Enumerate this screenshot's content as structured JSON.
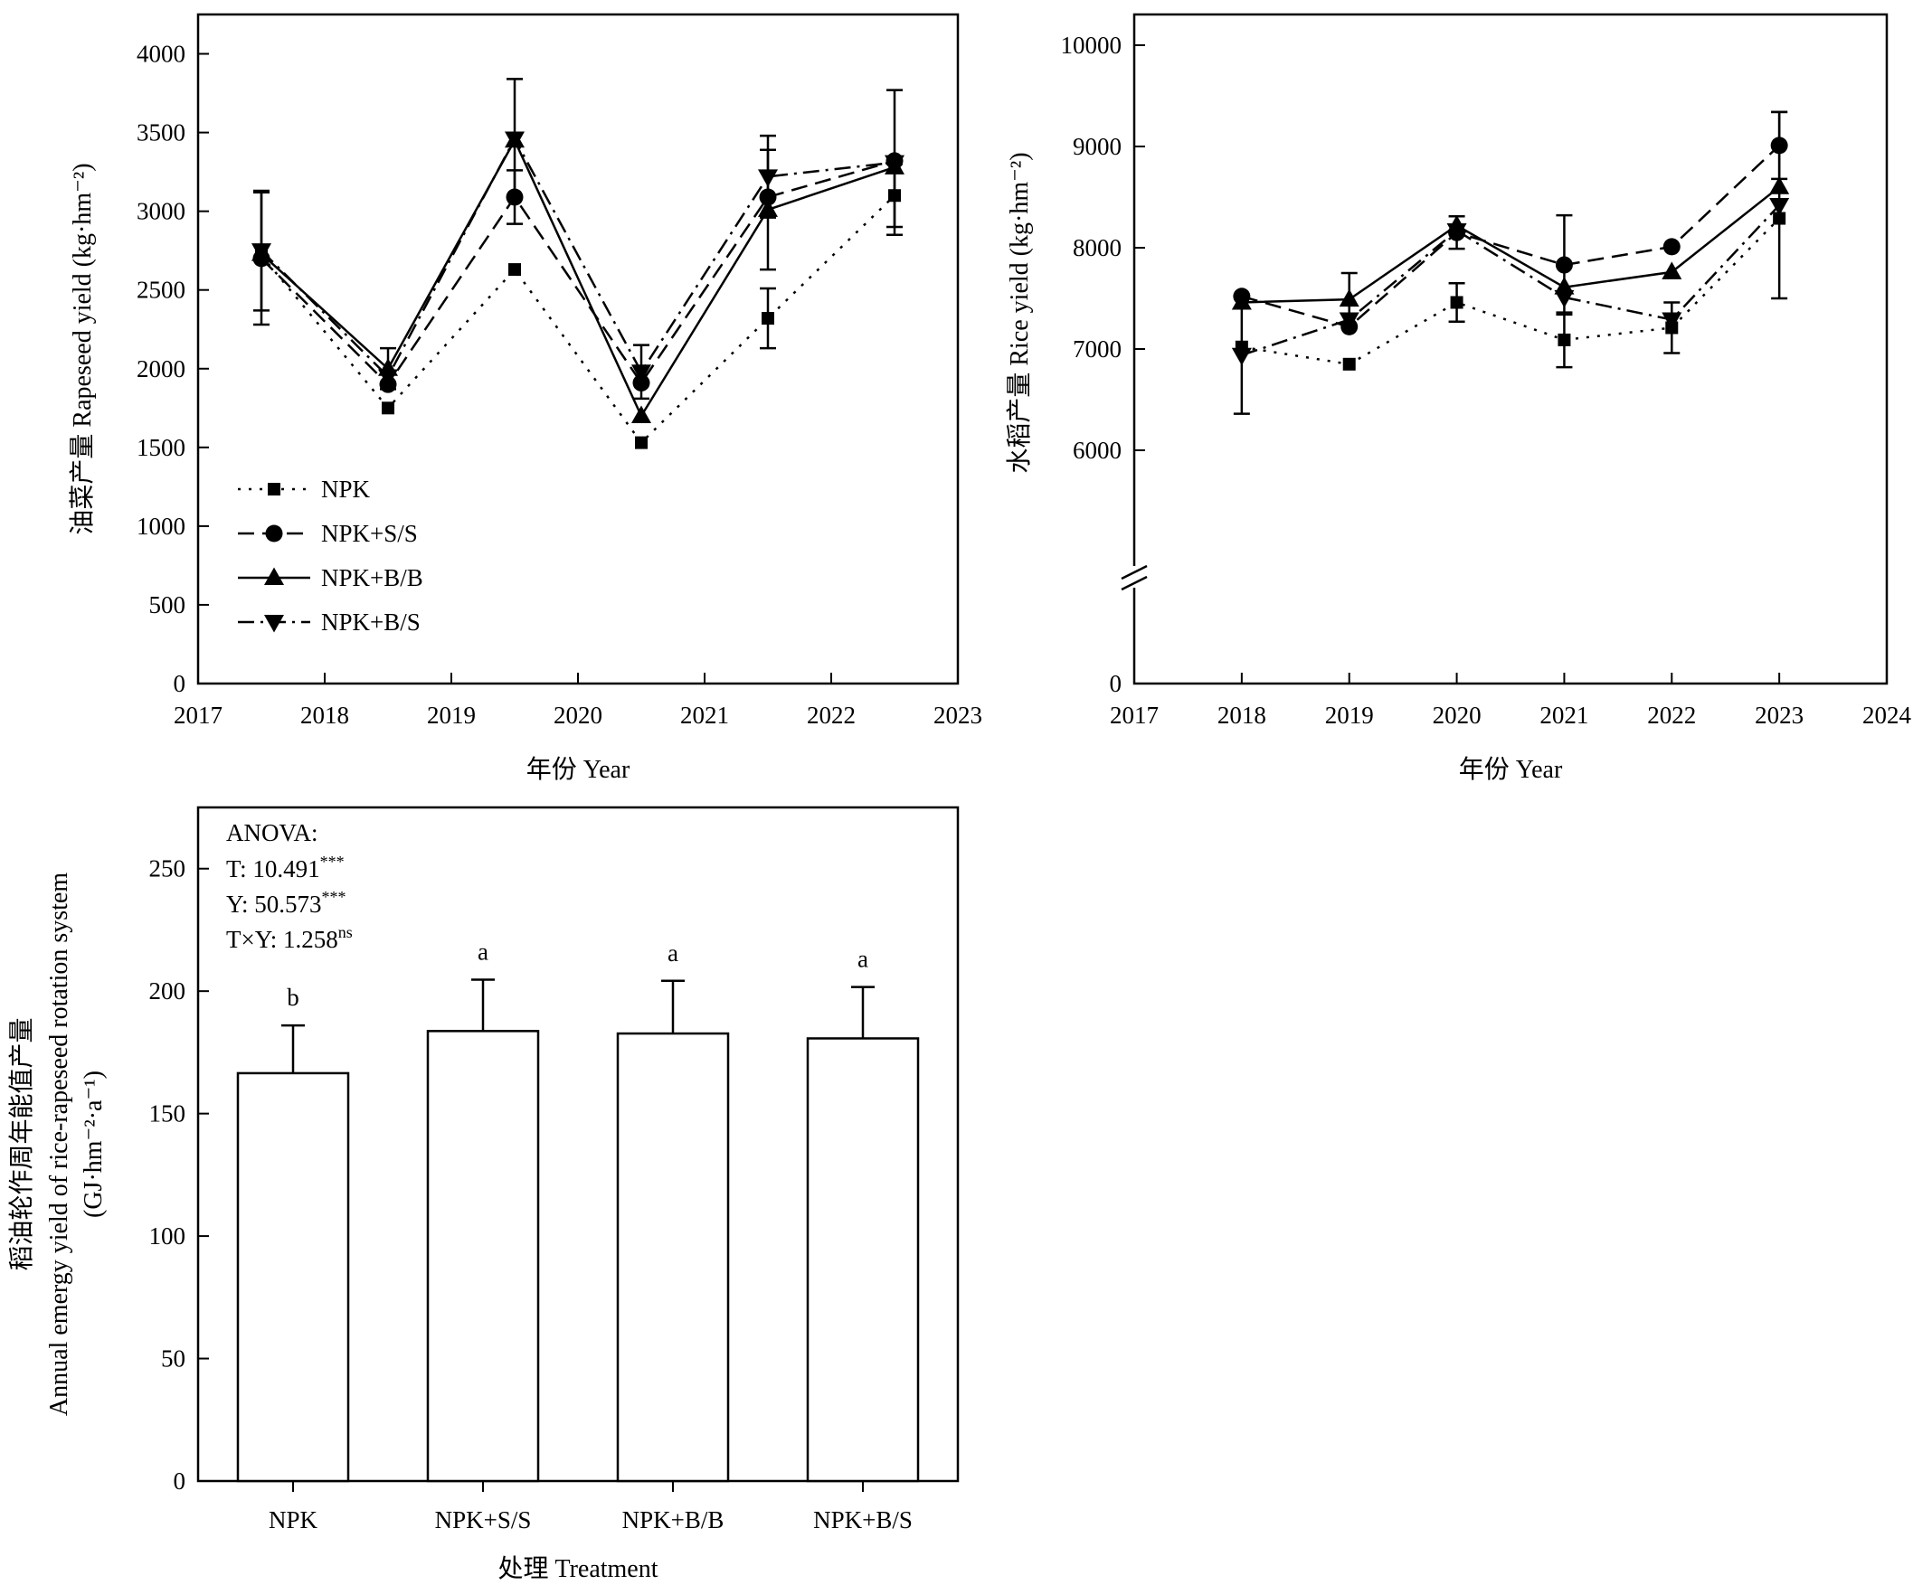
{
  "chart_data": [
    {
      "type": "line",
      "panel": "rapeseed",
      "xlabel": "年份 Year",
      "ylabel": "油菜产量 Rapeseed yield (kg·hm⁻²)",
      "xlim": [
        2017,
        2023
      ],
      "ylim": [
        0,
        4250
      ],
      "xticks": [
        2017,
        2018,
        2019,
        2020,
        2021,
        2022,
        2023
      ],
      "yticks": [
        0,
        500,
        1000,
        1500,
        2000,
        2500,
        3000,
        3500,
        4000
      ],
      "x": [
        2017.5,
        2018.5,
        2019.5,
        2020.5,
        2021.5,
        2022.5
      ],
      "legend_position": "lower-left",
      "series": [
        {
          "name": "NPK",
          "marker": "square",
          "dash": "dotted",
          "values": [
            2720,
            1750,
            2630,
            1530,
            2320,
            3100
          ],
          "errors": [
            0,
            0,
            0,
            0,
            190,
            200
          ]
        },
        {
          "name": "NPK+S/S",
          "marker": "circle",
          "dash": "dashed",
          "values": [
            2700,
            1900,
            3090,
            1910,
            3090,
            3320
          ],
          "errors": [
            420,
            0,
            170,
            0,
            0,
            0
          ]
        },
        {
          "name": "NPK+B/B",
          "marker": "triangle-up",
          "dash": "solid",
          "values": [
            2730,
            2000,
            3450,
            1700,
            3010,
            3280
          ],
          "errors": [
            0,
            130,
            0,
            0,
            380,
            0
          ]
        },
        {
          "name": "NPK+B/S",
          "marker": "triangle-down",
          "dash": "dashdot",
          "values": [
            2750,
            1950,
            3460,
            1980,
            3220,
            3310
          ],
          "errors": [
            380,
            0,
            380,
            170,
            260,
            460
          ]
        }
      ]
    },
    {
      "type": "line",
      "panel": "rice",
      "xlabel": "年份 Year",
      "ylabel": "水稻产量 Rice yield (kg·hm⁻²)",
      "xlim": [
        2017,
        2024
      ],
      "axis_break": true,
      "yticks": [
        0,
        6000,
        7000,
        8000,
        9000,
        10000
      ],
      "xticks": [
        2017,
        2018,
        2019,
        2020,
        2021,
        2022,
        2023,
        2024
      ],
      "x": [
        2018,
        2019,
        2020,
        2021,
        2022,
        2023
      ],
      "series": [
        {
          "name": "NPK",
          "marker": "square",
          "dash": "dotted",
          "values": [
            7020,
            6850,
            7460,
            7090,
            7210,
            8290
          ],
          "errors": [
            0,
            0,
            190,
            270,
            250,
            0
          ]
        },
        {
          "name": "NPK+S/S",
          "marker": "circle",
          "dash": "dashed",
          "values": [
            7520,
            7220,
            8150,
            7830,
            8010,
            9010
          ],
          "errors": [
            0,
            0,
            160,
            490,
            0,
            330
          ]
        },
        {
          "name": "NPK+B/B",
          "marker": "triangle-up",
          "dash": "solid",
          "values": [
            7460,
            7490,
            8220,
            7610,
            7760,
            8600
          ],
          "errors": [
            0,
            260,
            0,
            0,
            0,
            0
          ]
        },
        {
          "name": "NPK+B/S",
          "marker": "triangle-down",
          "dash": "dashdot",
          "values": [
            6940,
            7290,
            8170,
            7510,
            7290,
            8420
          ],
          "errors": [
            580,
            0,
            0,
            0,
            0,
            920
          ]
        }
      ]
    },
    {
      "type": "bar",
      "panel": "emergy",
      "xlabel": "处理 Treatment",
      "ylabel_lines": [
        "稻油轮作周年能值产量",
        "Annual emergy yield of rice-rapeseed rotation system",
        "(GJ·hm⁻²·a⁻¹)"
      ],
      "categories": [
        "NPK",
        "NPK+S/S",
        "NPK+B/B",
        "NPK+B/S"
      ],
      "values": [
        166.5,
        183.7,
        182.7,
        180.7
      ],
      "errors": [
        19.5,
        21,
        21.5,
        21
      ],
      "significance": [
        "b",
        "a",
        "a",
        "a"
      ],
      "ylim": [
        0,
        275
      ],
      "yticks": [
        0,
        50,
        100,
        150,
        200,
        250
      ],
      "anova": {
        "title": "ANOVA:",
        "lines": [
          {
            "label": "T: 10.491",
            "sup": "***"
          },
          {
            "label": "Y: 50.573",
            "sup": "***"
          },
          {
            "label": "T×Y: 1.258",
            "sup": "ns"
          }
        ]
      }
    }
  ]
}
